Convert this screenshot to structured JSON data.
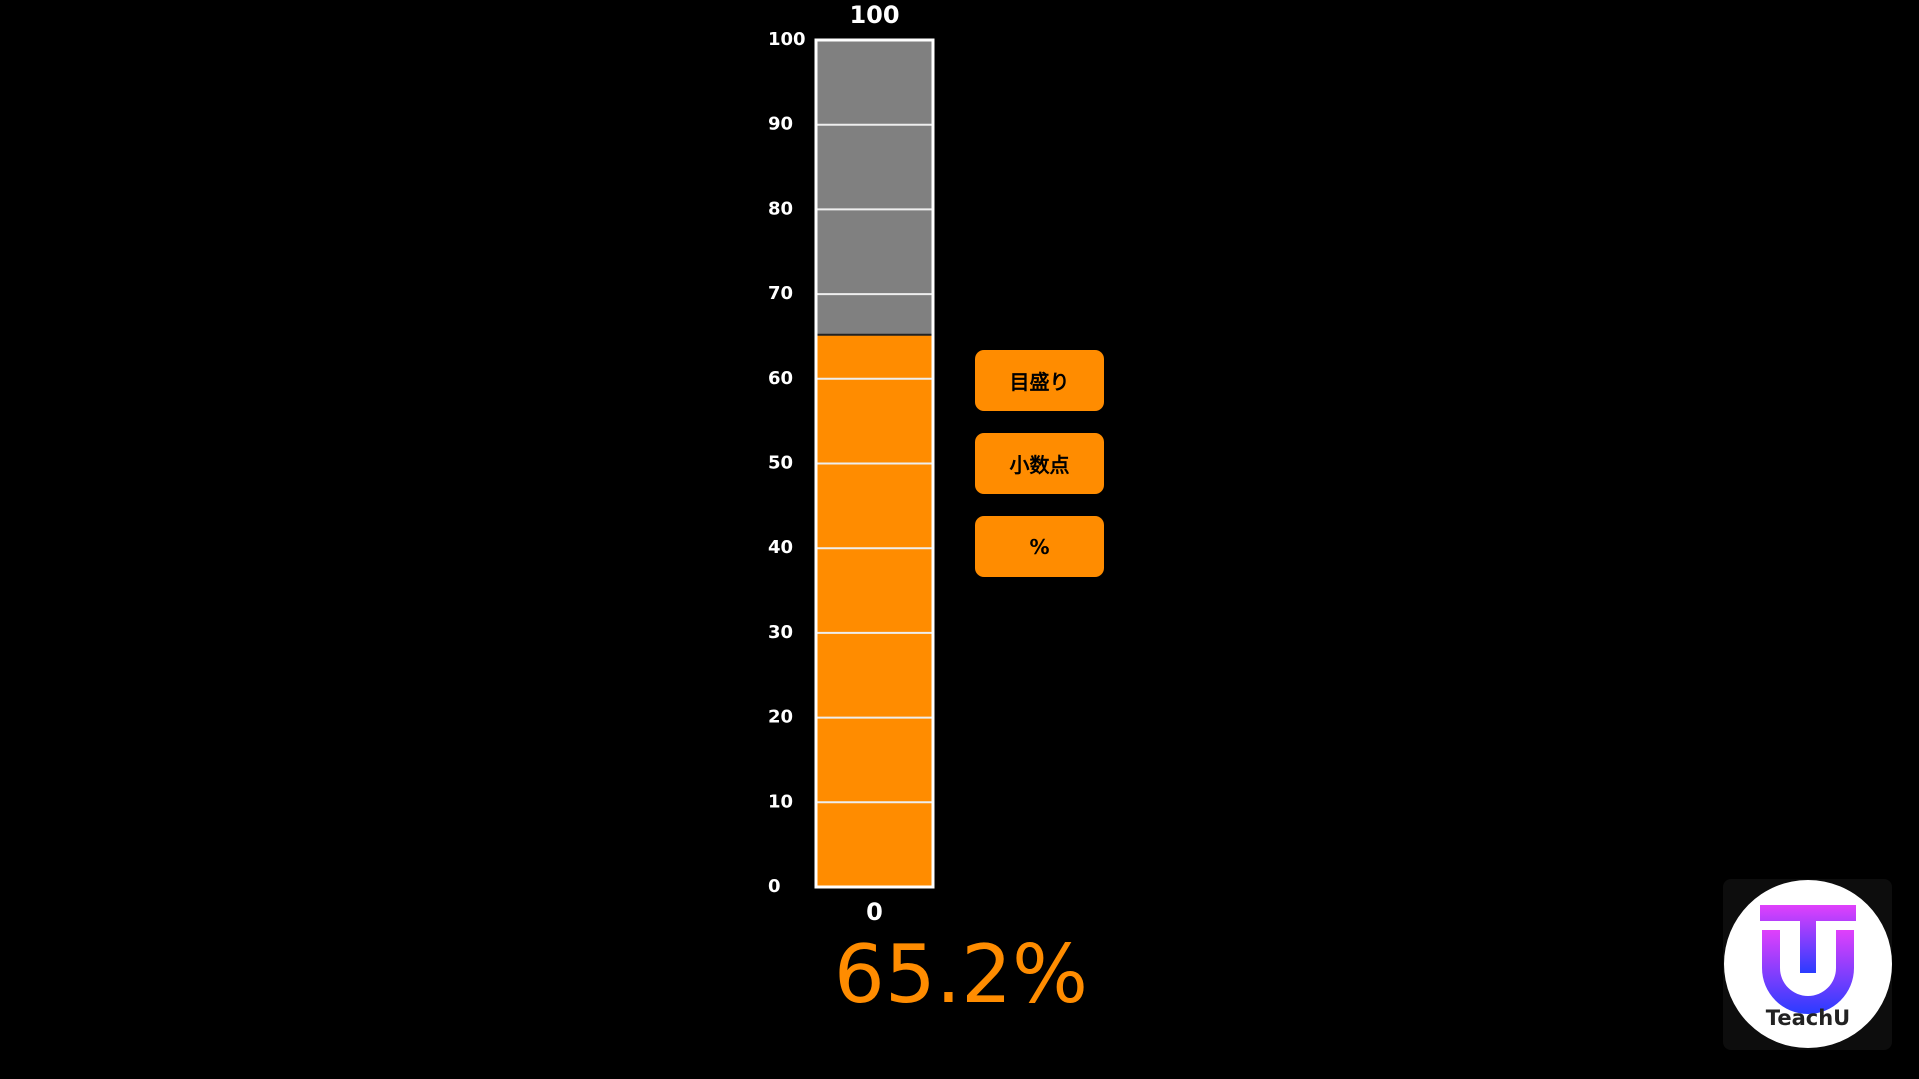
{
  "gauge": {
    "min": 0,
    "max": 100,
    "ticks": [
      0,
      10,
      20,
      30,
      40,
      50,
      60,
      70,
      80,
      90,
      100
    ],
    "value": 65.2,
    "value_label": "65.2%",
    "fill_color": "#ff8c00",
    "empty_color": "#808080"
  },
  "buttons": [
    "目盛り",
    "小数点",
    "%"
  ],
  "logo": {
    "text": "TeachU"
  }
}
